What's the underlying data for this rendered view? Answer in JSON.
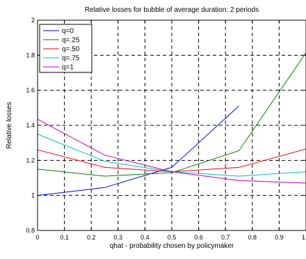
{
  "chart_data": {
    "type": "line",
    "title": "Relative losses for bubble of average duration: 2 periods",
    "xlabel": "qhat - probability chosen by policymaker",
    "ylabel": "Relative losses",
    "xlim": [
      0,
      1
    ],
    "ylim": [
      0.8,
      2
    ],
    "xticks": [
      0,
      0.1,
      0.2,
      0.3,
      0.4,
      0.5,
      0.6,
      0.7,
      0.8,
      0.9,
      1
    ],
    "xtick_labels": [
      "0",
      "0.1",
      "0.2",
      "0.3",
      "0.4",
      "0.5",
      "0.6",
      "0.7",
      "0.8",
      "0.9",
      "1"
    ],
    "yticks": [
      0.8,
      1,
      1.2,
      1.4,
      1.6,
      1.8,
      2
    ],
    "ytick_labels": [
      "0.8",
      "1",
      "1.2",
      "1.4",
      "1.6",
      "1.8",
      "2"
    ],
    "grid": true,
    "grid_style": "dashed",
    "legend_position": "top-left",
    "series": [
      {
        "name": "q=0",
        "color": "#0000ff",
        "x": [
          0,
          0.25,
          0.5,
          0.75
        ],
        "y": [
          1.0,
          1.045,
          1.16,
          1.51
        ]
      },
      {
        "name": "q=.25",
        "color": "#008000",
        "x": [
          0,
          0.25,
          0.5,
          0.75,
          1.0
        ],
        "y": [
          1.15,
          1.11,
          1.13,
          1.255,
          1.815
        ]
      },
      {
        "name": "q=.50",
        "color": "#ff0000",
        "x": [
          0,
          0.25,
          0.5,
          0.75,
          1.0
        ],
        "y": [
          1.26,
          1.16,
          1.135,
          1.16,
          1.265
        ]
      },
      {
        "name": "q=.75",
        "color": "#00bfbf",
        "x": [
          0,
          0.25,
          0.5,
          0.75,
          1.0
        ],
        "y": [
          1.35,
          1.195,
          1.135,
          1.11,
          1.135
        ]
      },
      {
        "name": "q=1",
        "color": "#bf00bf",
        "x": [
          0,
          0.25,
          0.5,
          0.75,
          1.0
        ],
        "y": [
          1.435,
          1.23,
          1.135,
          1.085,
          1.07
        ]
      }
    ]
  }
}
